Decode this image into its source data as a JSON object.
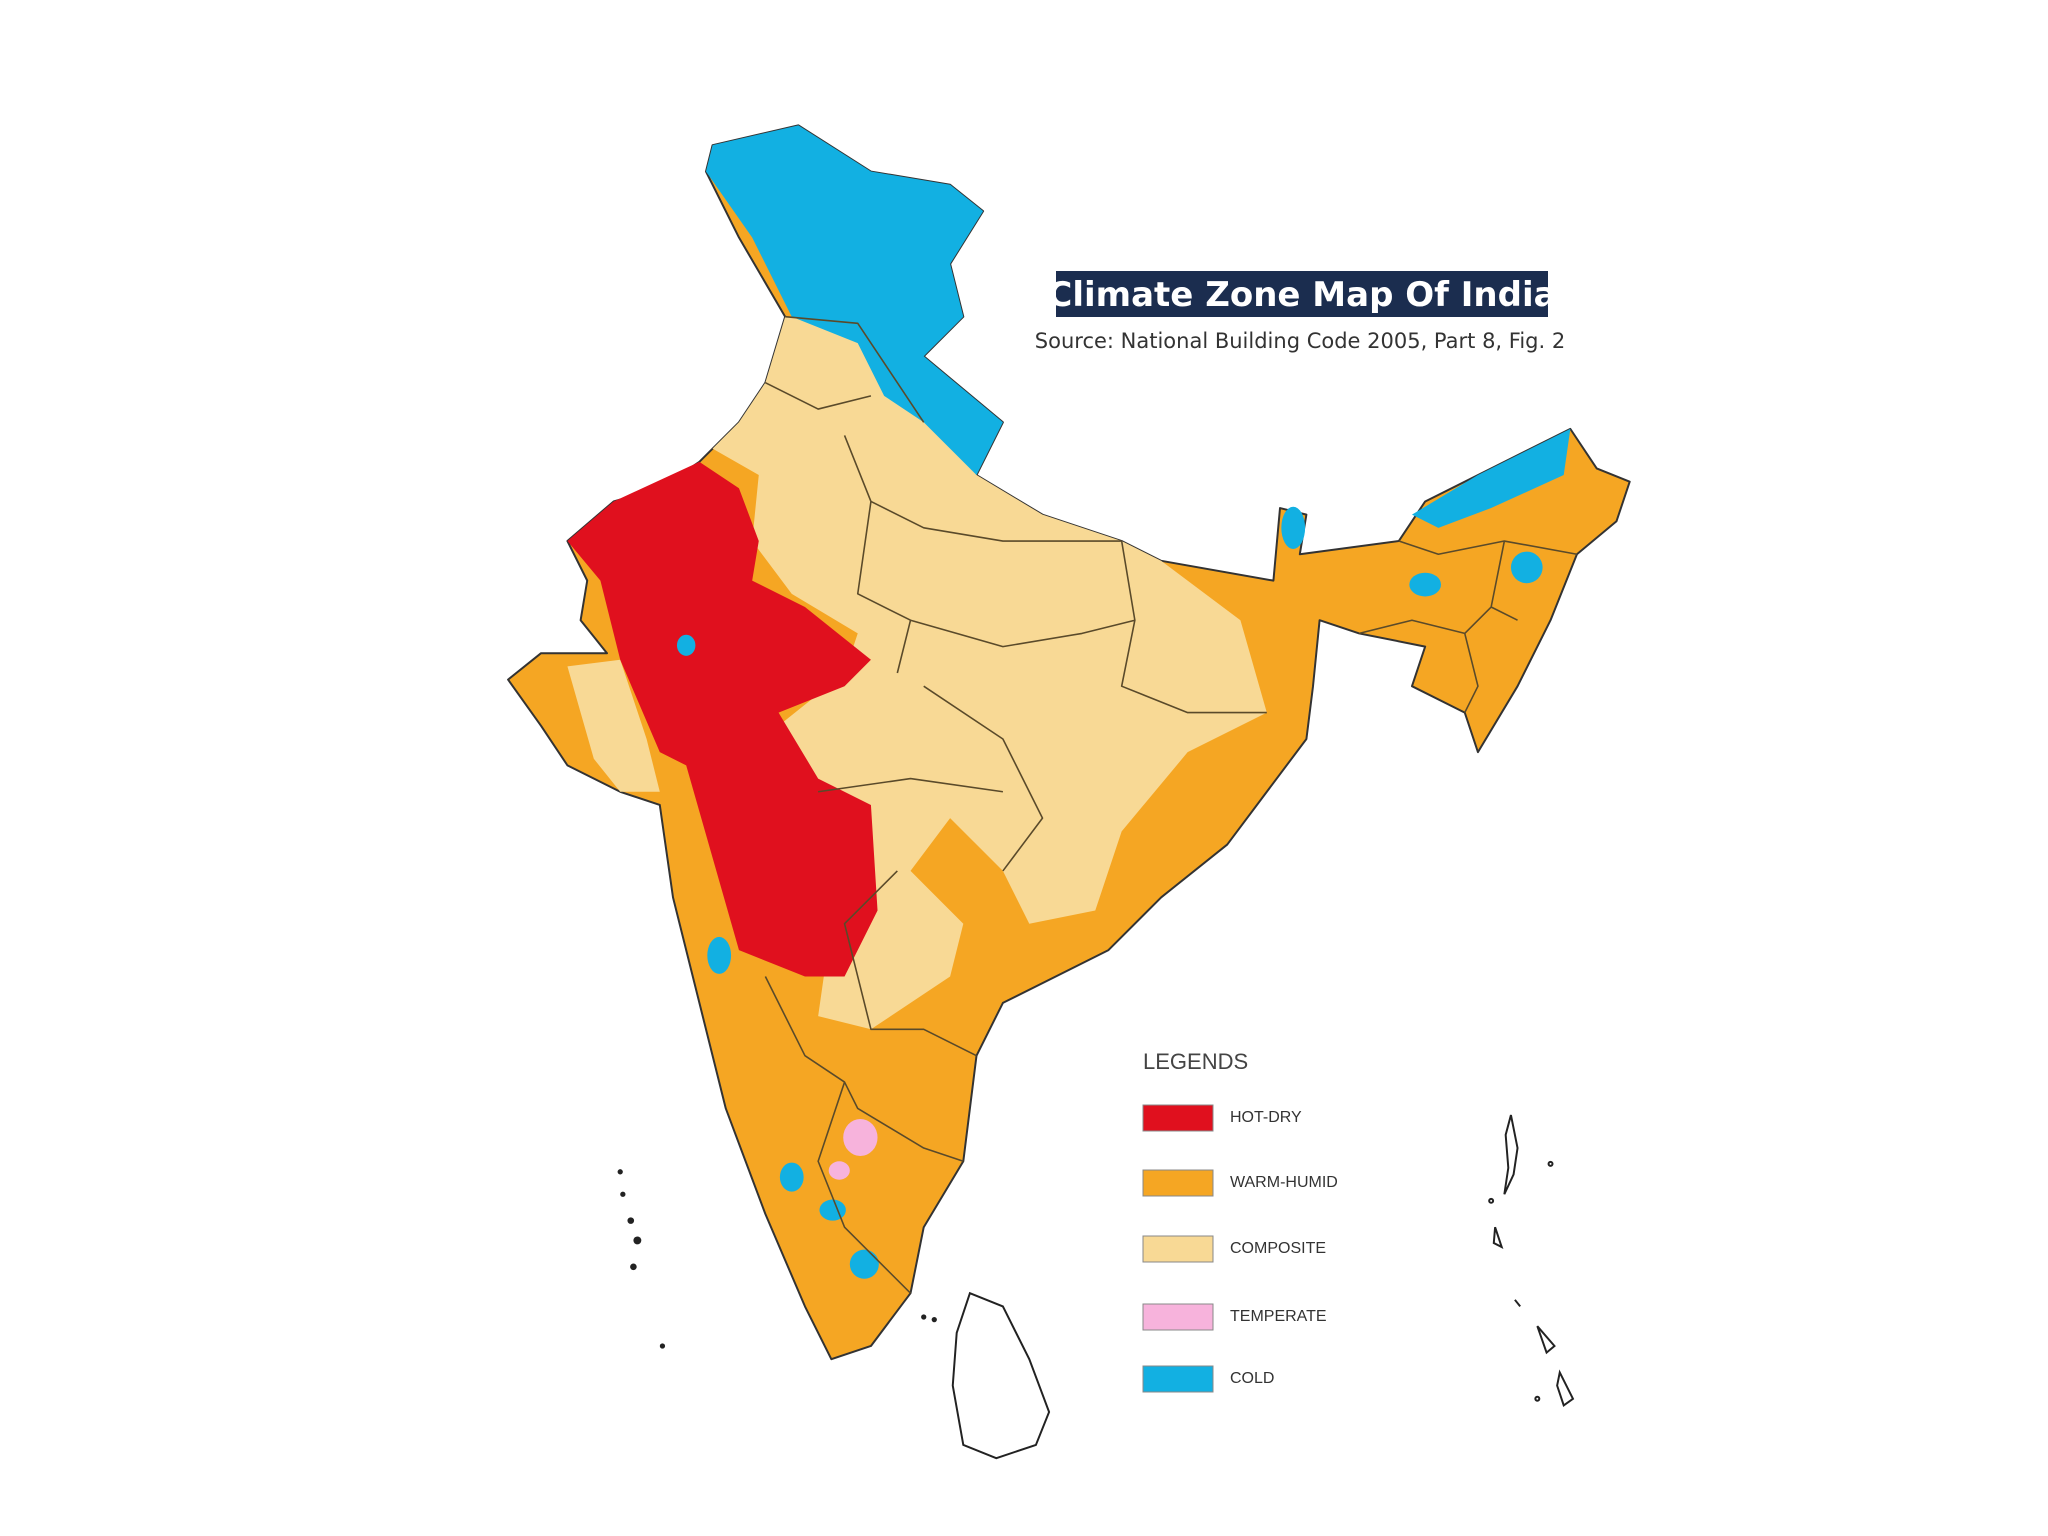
{
  "title": "Climate Zone Map Of India",
  "source": "Source: National Building Code 2005, Part 8, Fig. 2",
  "legend": {
    "heading": "LEGENDS",
    "items": [
      {
        "label": "HOT-DRY",
        "color": "#e0101e"
      },
      {
        "label": "WARM-HUMID",
        "color": "#f5a623"
      },
      {
        "label": "COMPOSITE",
        "color": "#f8d995"
      },
      {
        "label": "TEMPERATE",
        "color": "#f7b3dc"
      },
      {
        "label": "COLD",
        "color": "#12b0e2"
      }
    ]
  }
}
